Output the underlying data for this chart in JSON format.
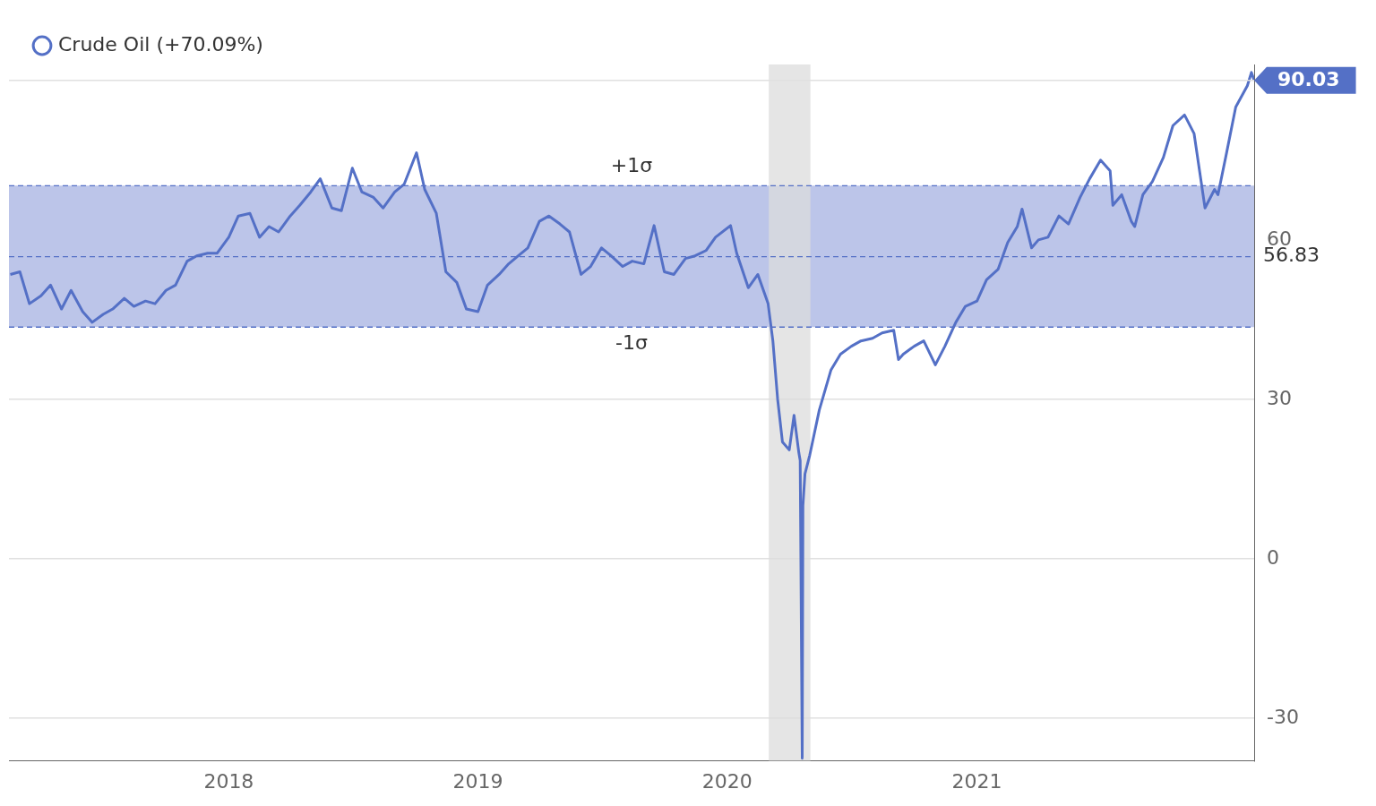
{
  "chart_data": {
    "type": "line",
    "legend": "top left",
    "grid": "y",
    "marker": "none",
    "line_style": "solid",
    "xlim": [
      "2017-02-13",
      "2022-02-11"
    ],
    "xticks": [
      {
        "value": "2018-01-01",
        "label": "2018"
      },
      {
        "value": "2019-01-01",
        "label": "2019"
      },
      {
        "value": "2020-01-01",
        "label": "2020"
      },
      {
        "value": "2021-01-01",
        "label": "2021"
      }
    ],
    "ylim": [
      -38,
      93
    ],
    "yticks": [
      -30,
      0,
      30,
      60
    ],
    "bands": [
      {
        "axis": "y",
        "from": 43.6,
        "to": 70.2,
        "color": "#bcc5e9"
      },
      {
        "axis": "x",
        "from": "2020-03-02",
        "to": "2020-05-02",
        "color": "#dcdcdc"
      }
    ],
    "ref_lines": [
      {
        "axis": "y",
        "value": 70.2,
        "label": "+1σ",
        "color": "#5470c6",
        "line_style": "dashed"
      },
      {
        "axis": "y",
        "value": 56.83,
        "label": "56.83",
        "color": "#5470c6",
        "line_style": "dashed"
      },
      {
        "axis": "y",
        "value": 43.6,
        "label": "-1σ",
        "color": "#5470c6",
        "line_style": "dashed"
      },
      {
        "axis": "y",
        "value": 90.03,
        "label": "90.03",
        "color": "#e0e0e0"
      }
    ],
    "x": [
      "2017-02-15",
      "2017-03-01",
      "2017-03-15",
      "2017-04-01",
      "2017-04-15",
      "2017-05-01",
      "2017-05-15",
      "2017-06-01",
      "2017-06-15",
      "2017-07-01",
      "2017-07-15",
      "2017-08-01",
      "2017-08-15",
      "2017-09-01",
      "2017-09-15",
      "2017-10-01",
      "2017-10-15",
      "2017-11-01",
      "2017-11-15",
      "2017-12-01",
      "2017-12-15",
      "2018-01-01",
      "2018-01-15",
      "2018-02-01",
      "2018-02-15",
      "2018-03-01",
      "2018-03-15",
      "2018-04-01",
      "2018-04-15",
      "2018-05-01",
      "2018-05-15",
      "2018-06-01",
      "2018-06-15",
      "2018-07-01",
      "2018-07-15",
      "2018-08-01",
      "2018-08-15",
      "2018-09-01",
      "2018-09-15",
      "2018-10-03",
      "2018-10-15",
      "2018-11-01",
      "2018-11-15",
      "2018-12-01",
      "2018-12-15",
      "2019-01-01",
      "2019-01-15",
      "2019-02-01",
      "2019-02-15",
      "2019-03-01",
      "2019-03-15",
      "2019-04-01",
      "2019-04-15",
      "2019-05-01",
      "2019-05-15",
      "2019-06-01",
      "2019-06-15",
      "2019-07-01",
      "2019-07-15",
      "2019-08-01",
      "2019-08-15",
      "2019-09-01",
      "2019-09-16",
      "2019-10-01",
      "2019-10-15",
      "2019-11-01",
      "2019-11-15",
      "2019-12-01",
      "2019-12-15",
      "2020-01-06",
      "2020-01-15",
      "2020-02-01",
      "2020-02-15",
      "2020-03-01",
      "2020-03-08",
      "2020-03-15",
      "2020-03-22",
      "2020-04-01",
      "2020-04-08",
      "2020-04-15",
      "2020-04-17",
      "2020-04-20",
      "2020-04-21",
      "2020-04-24",
      "2020-05-01",
      "2020-05-15",
      "2020-06-01",
      "2020-06-15",
      "2020-07-01",
      "2020-07-15",
      "2020-08-01",
      "2020-08-15",
      "2020-09-01",
      "2020-09-08",
      "2020-09-15",
      "2020-10-01",
      "2020-10-15",
      "2020-11-01",
      "2020-11-15",
      "2020-12-01",
      "2020-12-15",
      "2021-01-01",
      "2021-01-15",
      "2021-02-01",
      "2021-02-15",
      "2021-03-01",
      "2021-03-08",
      "2021-03-22",
      "2021-04-01",
      "2021-04-15",
      "2021-05-01",
      "2021-05-15",
      "2021-06-01",
      "2021-06-15",
      "2021-07-01",
      "2021-07-15",
      "2021-07-19",
      "2021-08-01",
      "2021-08-15",
      "2021-08-20",
      "2021-09-01",
      "2021-09-15",
      "2021-10-01",
      "2021-10-15",
      "2021-11-01",
      "2021-11-15",
      "2021-12-01",
      "2021-12-15",
      "2021-12-20",
      "2022-01-01",
      "2022-01-15",
      "2022-02-01",
      "2022-02-07",
      "2022-02-11"
    ],
    "series": [
      {
        "name": "Crude Oil (+70.09%)",
        "color": "#5470c6",
        "values": [
          53.5,
          54,
          48,
          49.5,
          51.5,
          47,
          50.5,
          46.5,
          44.5,
          46,
          47,
          49,
          47.5,
          48.5,
          48,
          50.5,
          51.5,
          56,
          57,
          57.5,
          57.5,
          60.5,
          64.5,
          65,
          60.5,
          62.5,
          61.5,
          64.5,
          66.5,
          69,
          71.5,
          66,
          65.5,
          73.5,
          69,
          68,
          66,
          69,
          70.5,
          76.4,
          69.5,
          65,
          54,
          52,
          47,
          46.5,
          51.5,
          53.5,
          55.5,
          57,
          58.5,
          63.5,
          64.5,
          63,
          61.5,
          53.5,
          55,
          58.5,
          57,
          55,
          56,
          55.5,
          62.7,
          54,
          53.5,
          56.5,
          57,
          58,
          60.5,
          62.7,
          57.5,
          51,
          53.5,
          48,
          41,
          30,
          22,
          20.5,
          27,
          20,
          18.5,
          -37.5,
          10,
          16,
          19.5,
          28,
          35.5,
          38.5,
          40,
          41,
          41.5,
          42.5,
          43,
          37.5,
          38.5,
          40,
          41,
          36.5,
          40,
          44.5,
          47.5,
          48.5,
          52.5,
          54.5,
          59.5,
          62.5,
          65.8,
          58.5,
          60,
          60.5,
          64.5,
          63,
          68,
          71.5,
          75,
          73,
          66.5,
          68.5,
          63.5,
          62.5,
          68.5,
          71,
          75.5,
          81.5,
          83.5,
          80,
          66,
          69.5,
          68.5,
          76,
          85,
          89,
          91.5,
          90.03
        ]
      }
    ]
  }
}
